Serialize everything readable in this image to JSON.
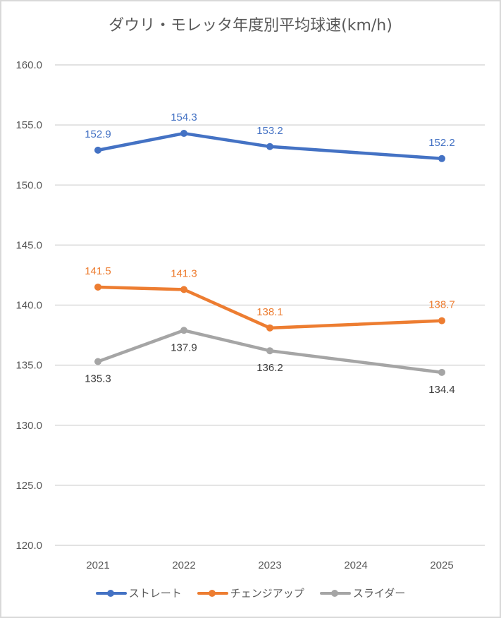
{
  "chart_data": {
    "type": "line",
    "title": "ダウリ・モレッタ年度別平均球速(km/h)",
    "xlabel": "",
    "ylabel": "",
    "categories": [
      "2021",
      "2022",
      "2023",
      "2024",
      "2025"
    ],
    "ylim": [
      120.0,
      160.0
    ],
    "yticks": [
      "120.0",
      "125.0",
      "130.0",
      "135.0",
      "140.0",
      "145.0",
      "150.0",
      "155.0",
      "160.0"
    ],
    "grid": true,
    "legend_position": "bottom",
    "series": [
      {
        "name": "ストレート",
        "color": "#4472c4",
        "values": [
          152.9,
          154.3,
          153.2,
          null,
          152.2
        ],
        "labels": [
          "152.9",
          "154.3",
          "153.2",
          "",
          "152.2"
        ],
        "label_pos": "above"
      },
      {
        "name": "チェンジアップ",
        "color": "#ed7d31",
        "values": [
          141.5,
          141.3,
          138.1,
          null,
          138.7
        ],
        "labels": [
          "141.5",
          "141.3",
          "138.1",
          "",
          "138.7"
        ],
        "label_pos": "above"
      },
      {
        "name": "スライダー",
        "color": "#a5a5a5",
        "values": [
          135.3,
          137.9,
          136.2,
          null,
          134.4
        ],
        "labels": [
          "135.3",
          "137.9",
          "136.2",
          "",
          "134.4"
        ],
        "label_pos": "below",
        "label_color": "#404040"
      }
    ]
  }
}
